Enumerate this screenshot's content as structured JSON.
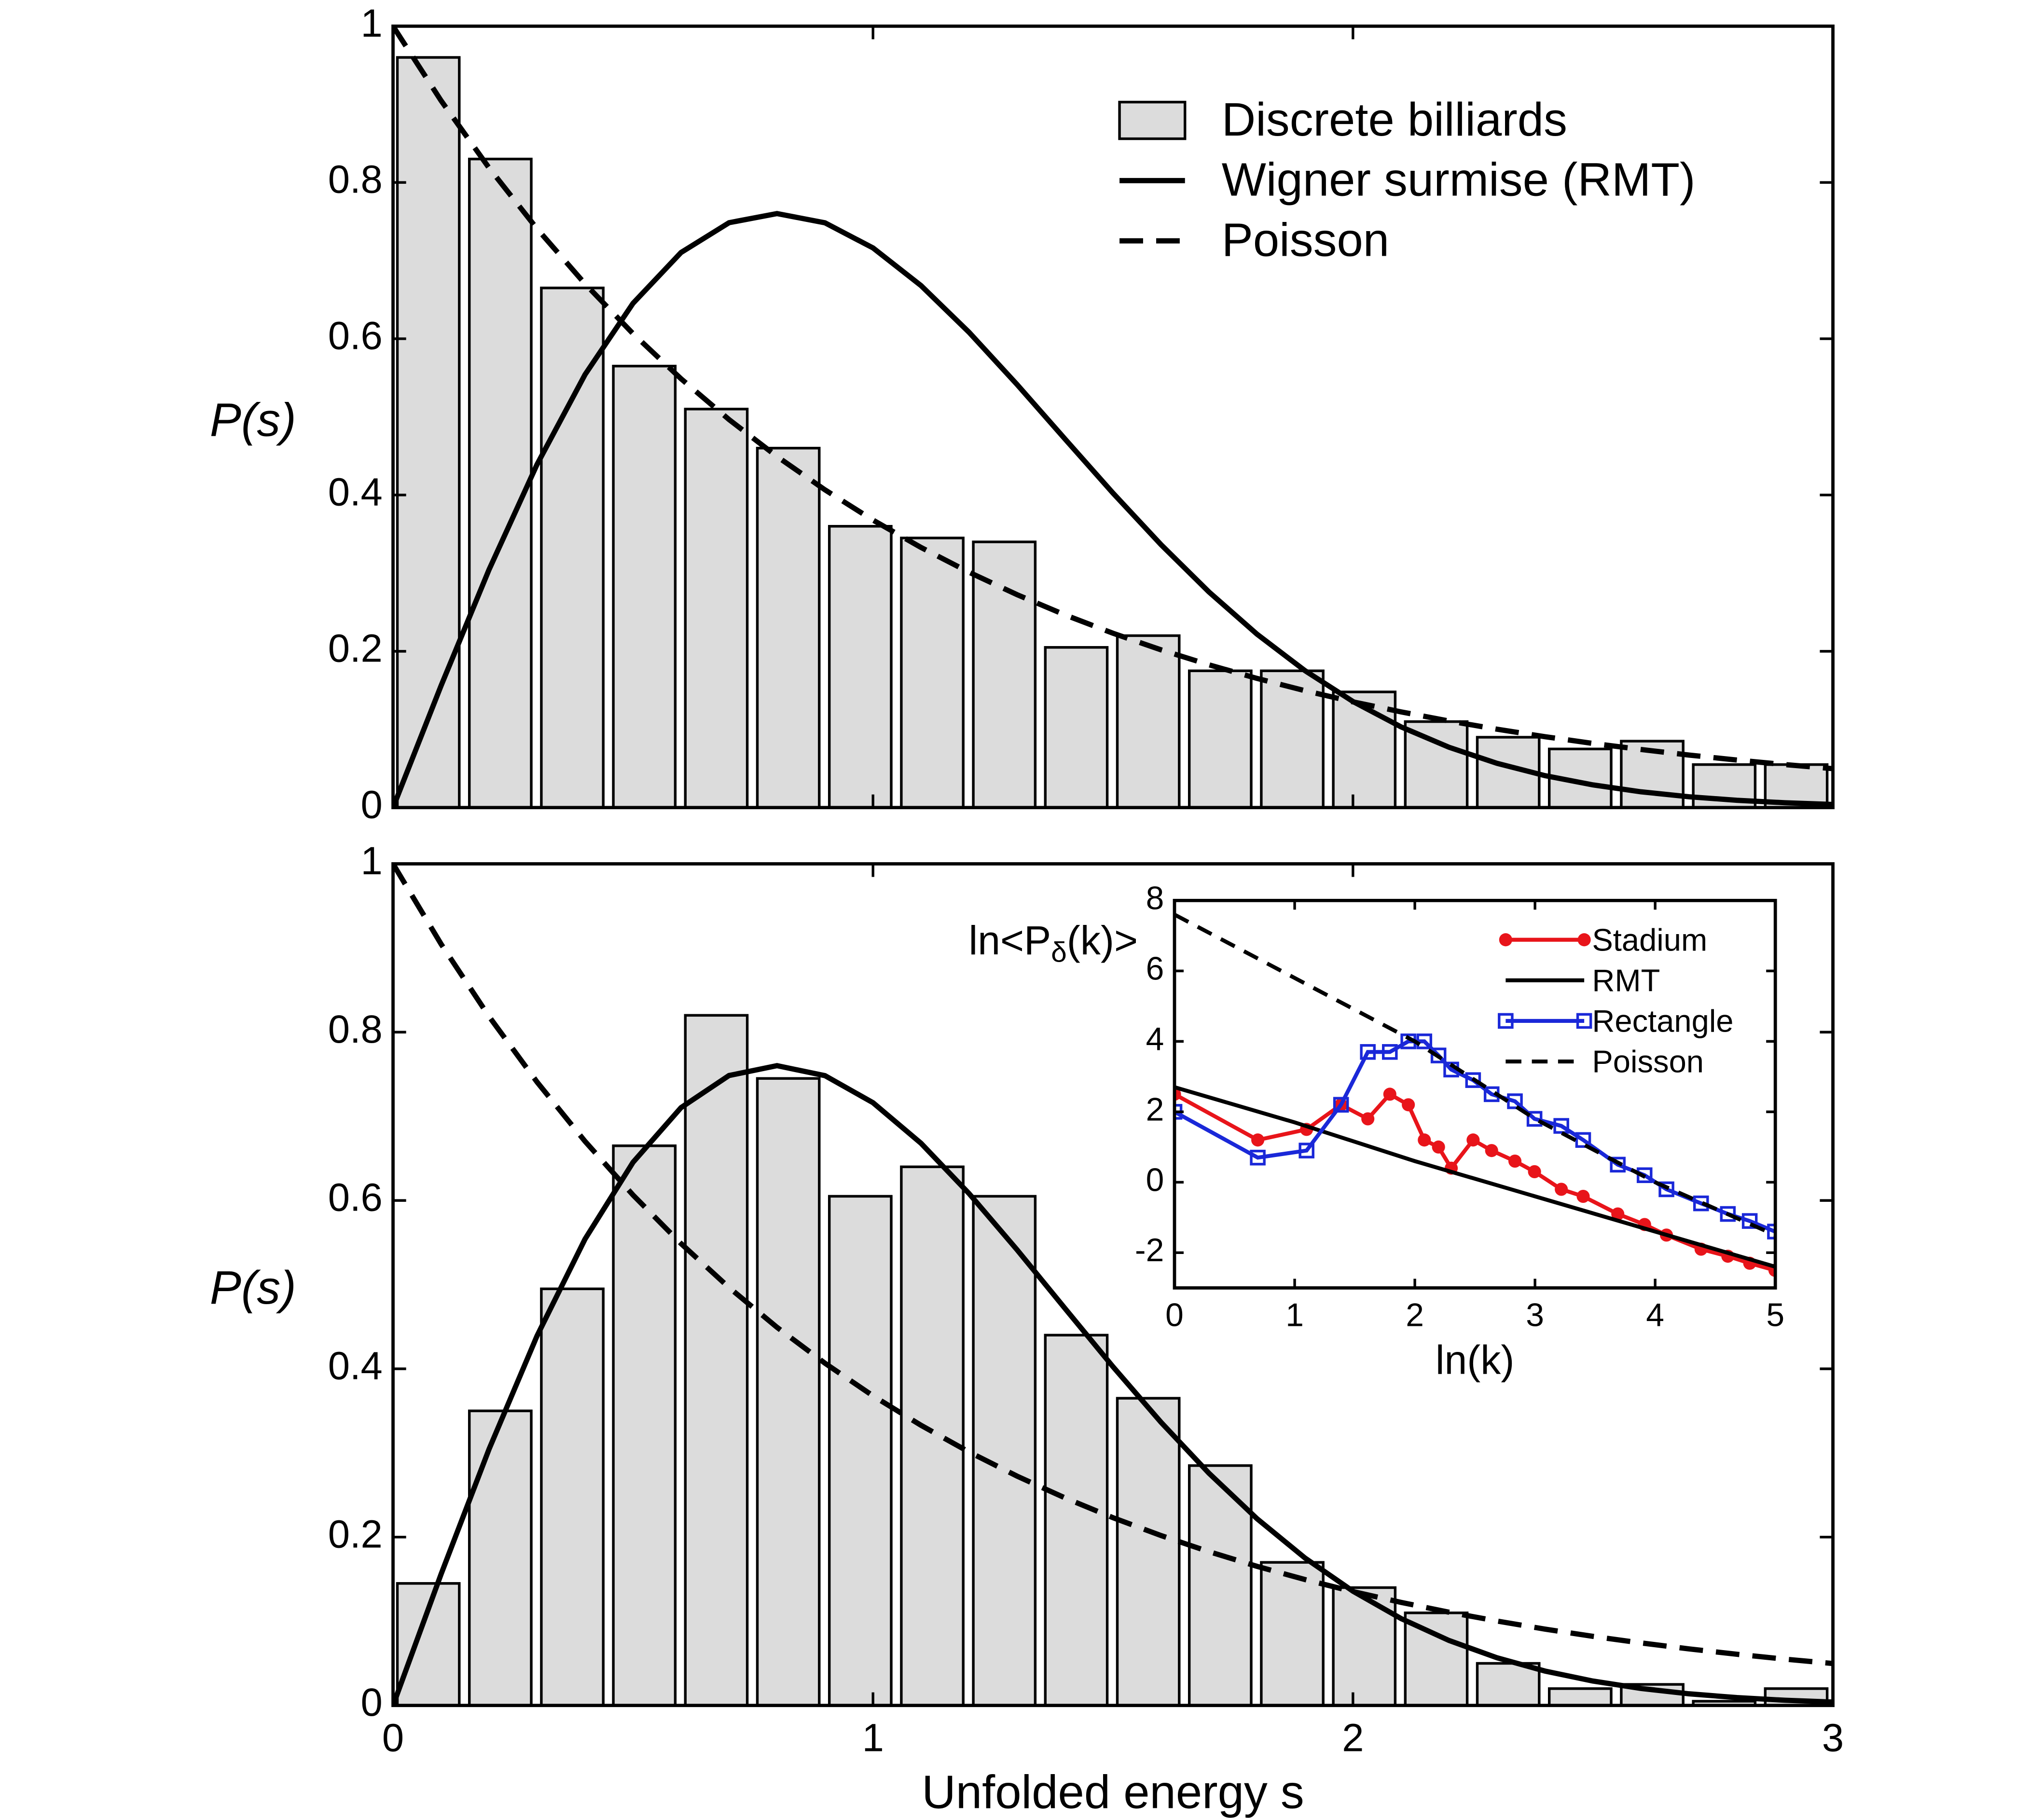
{
  "chart_data": [
    {
      "type": "histogram",
      "name": "Discrete billiards",
      "color": "#dcdcdc",
      "bins": [
        0,
        0.15,
        0.3,
        0.45,
        0.6,
        0.75,
        0.9,
        1.05,
        1.2,
        1.35,
        1.5,
        1.65,
        1.8,
        1.95,
        2.1,
        2.25,
        2.4,
        2.55,
        2.7,
        2.85,
        3.0
      ],
      "values": [
        0.96,
        0.83,
        0.665,
        0.565,
        0.51,
        0.46,
        0.36,
        0.345,
        0.34,
        0.205,
        0.22,
        0.175,
        0.175,
        0.148,
        0.11,
        0.09,
        0.075,
        0.085,
        0.055,
        0.055
      ],
      "series": [
        {
          "name": "Wigner surmise (RMT)",
          "color": "#000000",
          "dash": false,
          "x": [
            0,
            0.1,
            0.2,
            0.3,
            0.4,
            0.5,
            0.6,
            0.7,
            0.8,
            0.9,
            1.0,
            1.1,
            1.2,
            1.3,
            1.4,
            1.5,
            1.6,
            1.7,
            1.8,
            1.9,
            2.0,
            2.1,
            2.2,
            2.3,
            2.4,
            2.5,
            2.6,
            2.7,
            2.8,
            2.9,
            3.0
          ],
          "values": [
            0,
            0.15585,
            0.30444,
            0.43908,
            0.5541,
            0.64533,
            0.71032,
            0.74847,
            0.76019,
            0.74832,
            0.71619,
            0.66802,
            0.60832,
            0.54153,
            0.47175,
            0.40247,
            0.33653,
            0.27593,
            0.22196,
            0.17522,
            0.13575,
            0.10331,
            0.07721,
            0.05666,
            0.04087,
            0.02899,
            0.02019,
            0.01383,
            0.00931,
            0.00616,
            0.00401
          ]
        },
        {
          "name": "Poisson",
          "color": "#000000",
          "dash": true,
          "x": [
            0,
            0.1,
            0.2,
            0.3,
            0.4,
            0.5,
            0.6,
            0.7,
            0.8,
            0.9,
            1.0,
            1.1,
            1.2,
            1.3,
            1.4,
            1.5,
            1.6,
            1.7,
            1.8,
            1.9,
            2.0,
            2.1,
            2.2,
            2.3,
            2.4,
            2.5,
            2.6,
            2.7,
            2.8,
            2.9,
            3.0
          ],
          "values": [
            1,
            0.9048,
            0.8187,
            0.7408,
            0.6703,
            0.6065,
            0.5488,
            0.4966,
            0.4493,
            0.4066,
            0.3679,
            0.3329,
            0.3012,
            0.2725,
            0.2466,
            0.2231,
            0.2019,
            0.1827,
            0.1653,
            0.1496,
            0.1353,
            0.1225,
            0.1108,
            0.1003,
            0.0907,
            0.0821,
            0.0743,
            0.0672,
            0.0608,
            0.055,
            0.0498
          ]
        }
      ],
      "ylabel": "P(s)",
      "xlim": [
        0,
        3
      ],
      "xticks": [
        0,
        1,
        2,
        3
      ],
      "ylim": [
        0,
        1
      ],
      "yticks": [
        0,
        0.2,
        0.4,
        0.6,
        0.8,
        1
      ],
      "legend": "upper right"
    },
    {
      "type": "histogram",
      "color": "#dcdcdc",
      "bins": [
        0,
        0.15,
        0.3,
        0.45,
        0.6,
        0.75,
        0.9,
        1.05,
        1.2,
        1.35,
        1.5,
        1.65,
        1.8,
        1.95,
        2.1,
        2.25,
        2.4,
        2.55,
        2.7,
        2.85,
        3.0
      ],
      "values": [
        0.145,
        0.35,
        0.495,
        0.665,
        0.82,
        0.745,
        0.605,
        0.64,
        0.605,
        0.44,
        0.365,
        0.285,
        0.17,
        0.14,
        0.11,
        0.05,
        0.02,
        0.025,
        0.005,
        0.02
      ],
      "series": [
        {
          "color": "#000000",
          "dash": false,
          "x": [
            0,
            0.1,
            0.2,
            0.3,
            0.4,
            0.5,
            0.6,
            0.7,
            0.8,
            0.9,
            1.0,
            1.1,
            1.2,
            1.3,
            1.4,
            1.5,
            1.6,
            1.7,
            1.8,
            1.9,
            2.0,
            2.1,
            2.2,
            2.3,
            2.4,
            2.5,
            2.6,
            2.7,
            2.8,
            2.9,
            3.0
          ],
          "values": [
            0,
            0.15585,
            0.30444,
            0.43908,
            0.5541,
            0.64533,
            0.71032,
            0.74847,
            0.76019,
            0.74832,
            0.71619,
            0.66802,
            0.60832,
            0.54153,
            0.47175,
            0.40247,
            0.33653,
            0.27593,
            0.22196,
            0.17522,
            0.13575,
            0.10331,
            0.07721,
            0.05666,
            0.04087,
            0.02899,
            0.02019,
            0.01383,
            0.00931,
            0.00616,
            0.00401
          ]
        },
        {
          "color": "#000000",
          "dash": true,
          "x": [
            0,
            0.1,
            0.2,
            0.3,
            0.4,
            0.5,
            0.6,
            0.7,
            0.8,
            0.9,
            1.0,
            1.1,
            1.2,
            1.3,
            1.4,
            1.5,
            1.6,
            1.7,
            1.8,
            1.9,
            2.0,
            2.1,
            2.2,
            2.3,
            2.4,
            2.5,
            2.6,
            2.7,
            2.8,
            2.9,
            3.0
          ],
          "values": [
            1,
            0.9048,
            0.8187,
            0.7408,
            0.6703,
            0.6065,
            0.5488,
            0.4966,
            0.4493,
            0.4066,
            0.3679,
            0.3329,
            0.3012,
            0.2725,
            0.2466,
            0.2231,
            0.2019,
            0.1827,
            0.1653,
            0.1496,
            0.1353,
            0.1225,
            0.1108,
            0.1003,
            0.0907,
            0.0821,
            0.0743,
            0.0672,
            0.0608,
            0.055,
            0.0498
          ]
        }
      ],
      "ylabel": "P(s)",
      "xlabel": "Unfolded energy s",
      "xlim": [
        0,
        3
      ],
      "xticks": [
        0,
        1,
        2,
        3
      ],
      "ylim": [
        0,
        1
      ],
      "yticks": [
        0,
        0.2,
        0.4,
        0.6,
        0.8,
        1
      ]
    },
    {
      "type": "line",
      "series": [
        {
          "name": "Stadium",
          "color": "#e8141a",
          "marker": "circle",
          "dash": false,
          "x": [
            0,
            0.693,
            1.099,
            1.386,
            1.609,
            1.792,
            1.946,
            2.079,
            2.197,
            2.303,
            2.485,
            2.639,
            2.833,
            2.996,
            3.219,
            3.401,
            3.689,
            3.912,
            4.094,
            4.382,
            4.605,
            4.787,
            4.997
          ],
          "values": [
            2.5,
            1.2,
            1.5,
            2.2,
            1.8,
            2.5,
            2.2,
            1.2,
            1.0,
            0.4,
            1.2,
            0.9,
            0.6,
            0.3,
            -0.2,
            -0.4,
            -0.9,
            -1.2,
            -1.5,
            -1.9,
            -2.1,
            -2.3,
            -2.5
          ]
        },
        {
          "name": "RMT",
          "color": "#000000",
          "dash": false,
          "x": [
            0,
            1,
            2,
            3,
            4,
            5
          ],
          "values": [
            2.7,
            1.7,
            0.6,
            -0.4,
            -1.4,
            -2.4
          ]
        },
        {
          "name": "Rectangle",
          "color": "#1a28d8",
          "marker": "square",
          "dash": false,
          "x": [
            0,
            0.693,
            1.099,
            1.386,
            1.609,
            1.792,
            1.946,
            2.079,
            2.197,
            2.303,
            2.485,
            2.639,
            2.833,
            2.996,
            3.219,
            3.401,
            3.689,
            3.912,
            4.094,
            4.382,
            4.605,
            4.787,
            4.997
          ],
          "values": [
            2.0,
            0.7,
            0.9,
            2.2,
            3.7,
            3.7,
            4.0,
            4.0,
            3.6,
            3.2,
            2.9,
            2.5,
            2.3,
            1.8,
            1.6,
            1.2,
            0.5,
            0.2,
            -0.2,
            -0.6,
            -0.9,
            -1.1,
            -1.4
          ]
        },
        {
          "name": "Poisson",
          "color": "#000000",
          "dash": true,
          "x": [
            0,
            1,
            2,
            3,
            4,
            5
          ],
          "values": [
            7.6,
            5.8,
            4.0,
            1.8,
            0.0,
            -1.5
          ]
        }
      ],
      "ylabel": [
        "ln<P",
        "δ",
        "(k)>"
      ],
      "xlabel": "ln(k)",
      "xlim": [
        0,
        5
      ],
      "xticks": [
        0,
        1,
        2,
        3,
        4,
        5
      ],
      "ylim": [
        -3,
        8
      ],
      "yticks": [
        -2,
        0,
        2,
        4,
        6,
        8
      ],
      "legend": "upper right"
    }
  ]
}
